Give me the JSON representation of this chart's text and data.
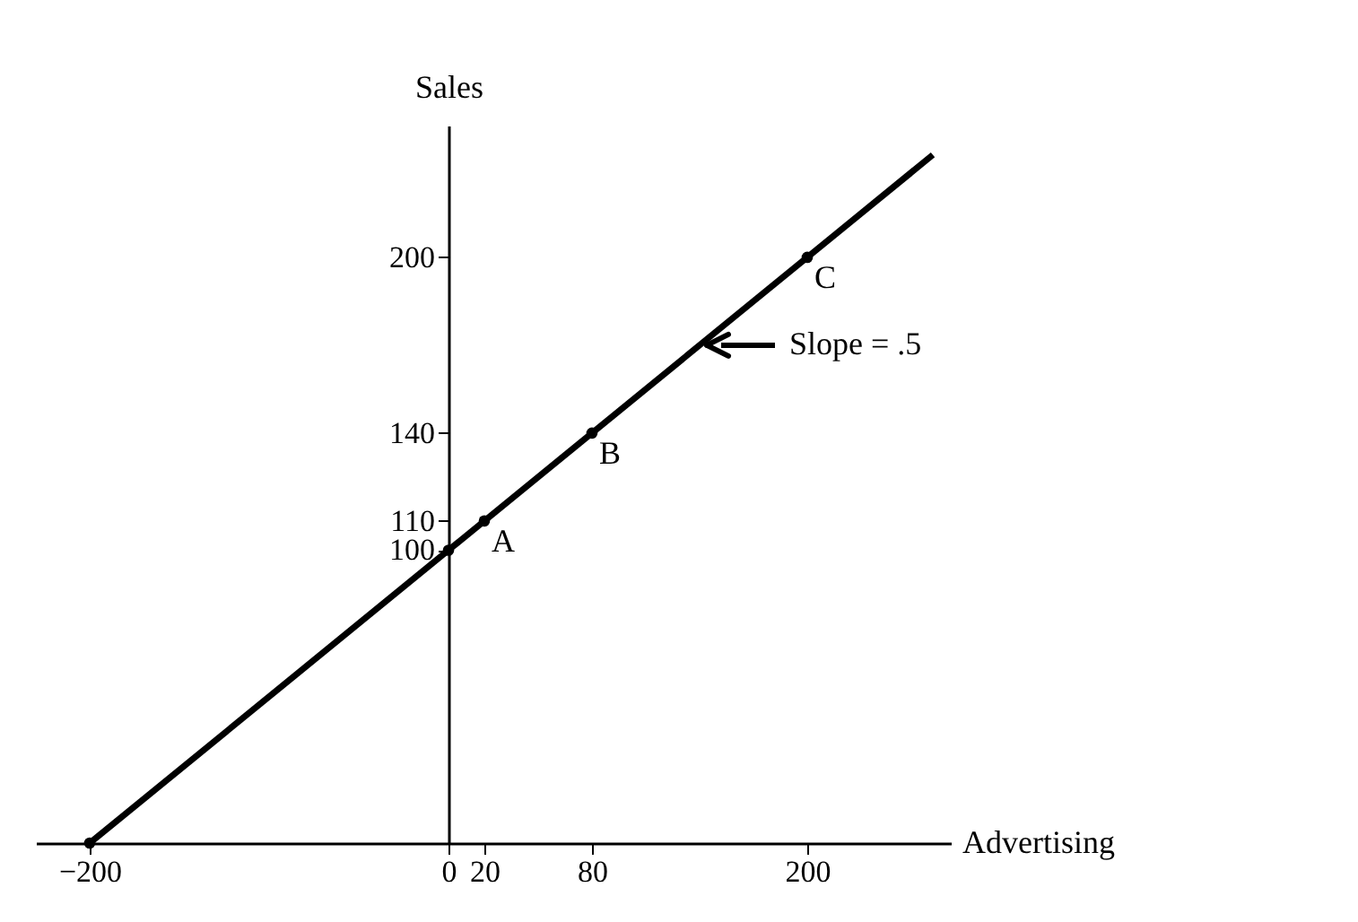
{
  "chart_data": {
    "type": "line",
    "xlabel": "Advertising",
    "ylabel": "Sales",
    "series": [
      {
        "type": "line",
        "color": "#000000",
        "marker": "none",
        "x": [
          -200,
          270
        ],
        "values": [
          0,
          235
        ]
      },
      {
        "type": "scatter",
        "color": "#000000",
        "marker": "circle",
        "x": [
          -200,
          0,
          20,
          80,
          200
        ],
        "values": [
          0,
          100,
          110,
          140,
          200
        ]
      }
    ],
    "xlim": [
      -230,
      280
    ],
    "ylim": [
      0,
      245
    ],
    "xticks": [
      -200,
      0,
      20,
      80,
      200
    ],
    "yticks": [
      100,
      110,
      140,
      200
    ],
    "annotations": [
      {
        "text": "A",
        "x": 20,
        "y": 110
      },
      {
        "text": "B",
        "x": 80,
        "y": 140
      },
      {
        "text": "C",
        "x": 200,
        "y": 200
      },
      {
        "text": "Slope = .5",
        "x": 140,
        "y": 170
      }
    ],
    "grid": false
  }
}
